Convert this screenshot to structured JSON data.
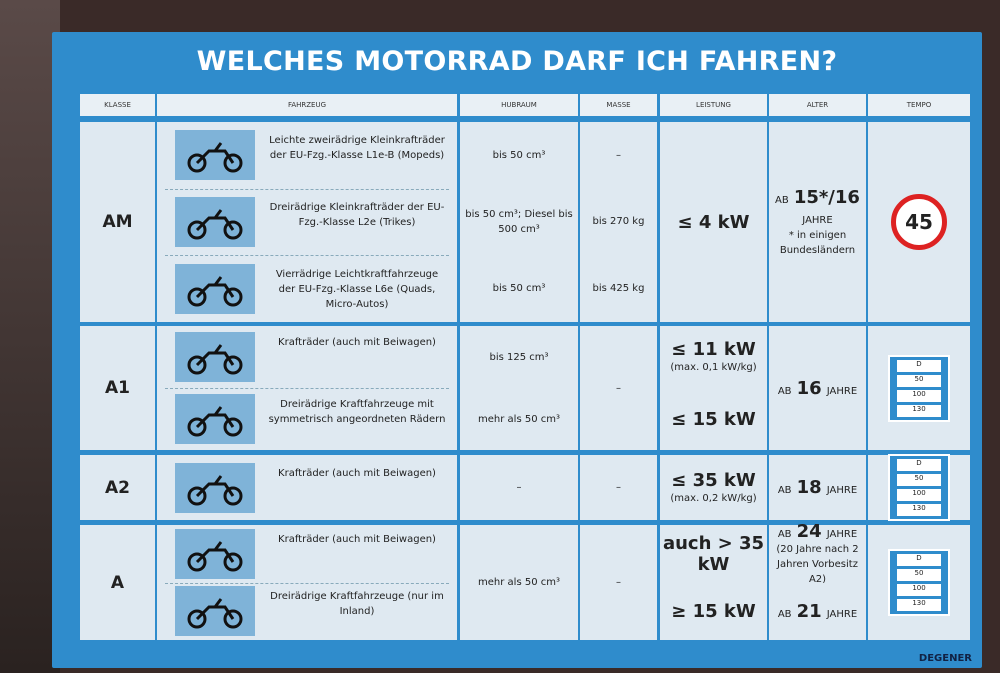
{
  "title": "WELCHES MOTORRAD DARF ICH FAHREN?",
  "headers": [
    "KLASSE",
    "FAHRZEUG",
    "HUBRAUM",
    "MASSE",
    "LEISTUNG",
    "ALTER",
    "TEMPO"
  ],
  "rows": [
    {
      "klasse": "AM",
      "vehicles": [
        {
          "desc": "Leichte zweirädrige Kleinkrafträder der EU-Fzg.-Klasse L1e-B (Mopeds)",
          "hubraum": "bis 50 cm³",
          "masse": "–"
        },
        {
          "desc": "Dreirädrige Kleinkrafträder der EU-Fzg.-Klasse L2e (Trikes)",
          "hubraum": "bis 50 cm³; Diesel bis 500 cm³",
          "masse": "bis 270 kg"
        },
        {
          "desc": "Vierrädrige Leichtkraftfahrzeuge der EU-Fzg.-Klasse L6e (Quads, Micro-Autos)",
          "hubraum": "bis 50 cm³",
          "masse": "bis 425 kg"
        }
      ],
      "leistung": "≤ 4 kW",
      "alter_pre": "AB",
      "alter": "15*/16",
      "alter_post": "JAHRE",
      "footnote": "* in einigen Bundesländern",
      "tempo": "45"
    },
    {
      "klasse": "A1",
      "vehicles": [
        {
          "desc": "Krafträder (auch mit Beiwagen)",
          "hubraum": "bis 125 cm³",
          "leistung": "≤ 11 kW",
          "leistung_note": "(max. 0,1 kW/kg)"
        },
        {
          "desc": "Dreirädrige Kraftfahrzeuge mit symmetrisch angeordneten Rädern",
          "hubraum": "mehr als 50 cm³",
          "leistung": "≤ 15 kW"
        }
      ],
      "masse": "–",
      "alter_pre": "AB",
      "alter": "16",
      "alter_post": "JAHRE"
    },
    {
      "klasse": "A2",
      "vehicles": [
        {
          "desc": "Krafträder (auch mit Beiwagen)",
          "hubraum": "–",
          "leistung": "≤ 35 kW",
          "leistung_note": "(max. 0,2 kW/kg)"
        }
      ],
      "masse": "–",
      "alter_pre": "AB",
      "alter": "18",
      "alter_post": "JAHRE"
    },
    {
      "klasse": "A",
      "vehicles": [
        {
          "desc": "Krafträder (auch mit Beiwagen)",
          "leistung": "auch > 35 kW",
          "alter_pre": "AB",
          "alter": "24",
          "alter_post": "JAHRE",
          "alter_note": "(20 Jahre nach 2 Jahren Vorbesitz A2)"
        },
        {
          "desc": "Dreirädrige Kraftfahrzeuge (nur im Inland)",
          "leistung": "≥ 15 kW",
          "alter_pre": "AB",
          "alter": "21",
          "alter_post": "JAHRE"
        }
      ],
      "hubraum": "mehr als 50 cm³",
      "masse": "–"
    }
  ],
  "tempo_sign_labels": [
    "D",
    "50",
    "100",
    "130"
  ],
  "brand": "DEGENER"
}
